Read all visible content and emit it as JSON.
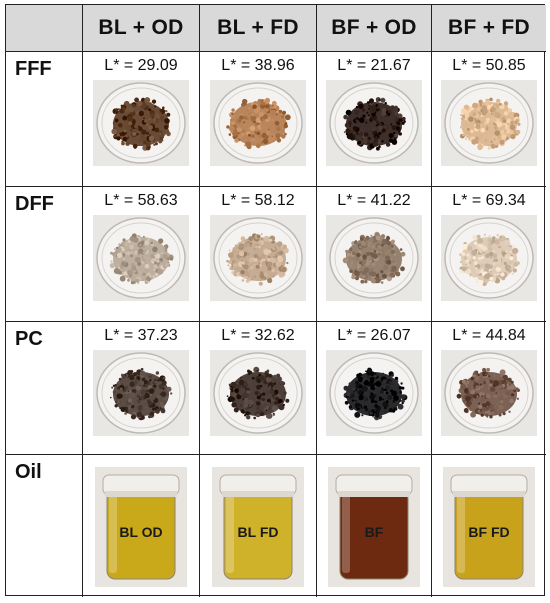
{
  "columns": [
    {
      "label": "BL + OD"
    },
    {
      "label": "BL + FD"
    },
    {
      "label": "BF + OD"
    },
    {
      "label": "BF + FD"
    }
  ],
  "rows": [
    {
      "label": "FFF",
      "values": [
        "L* = 29.09",
        "L* = 38.96",
        "L* = 21.67",
        "L* = 50.85"
      ],
      "colors": [
        "#5a3a22",
        "#b07a4e",
        "#2a1a14",
        "#d9b48c"
      ]
    },
    {
      "label": "DFF",
      "values": [
        "L* = 58.63",
        "L* = 58.12",
        "L* = 41.22",
        "L* = 69.34"
      ],
      "colors": [
        "#b6a796",
        "#c0a58b",
        "#8b7461",
        "#dcc8b2"
      ]
    },
    {
      "label": "PC",
      "values": [
        "L* = 37.23",
        "L* = 32.62",
        "L* = 26.07",
        "L* = 44.84"
      ],
      "colors": [
        "#4a3b33",
        "#3a2a24",
        "#141416",
        "#6e5244"
      ]
    },
    {
      "label": "Oil",
      "jar_text": [
        "BL OD",
        "BL FD",
        "BF",
        "BF FD"
      ],
      "colors": [
        "#c9a91a",
        "#d0b22a",
        "#6e2a10",
        "#c9a21c"
      ]
    }
  ]
}
